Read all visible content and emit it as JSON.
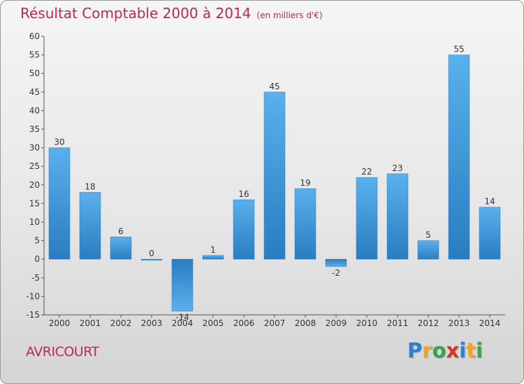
{
  "header": {
    "title": "Résultat Comptable 2000 à 2014",
    "unit": "(en milliers d'€)"
  },
  "commune": "AVRICOURT",
  "logo": {
    "text": "Proxiti",
    "letters": [
      "P",
      "r",
      "o",
      "x",
      "i",
      "t",
      "i"
    ]
  },
  "colors": {
    "title": "#c0265a",
    "bar_light": "#5ab0ec",
    "bar_dark": "#2a7dc0",
    "axis": "#555555"
  },
  "chart_data": {
    "type": "bar",
    "title": "Résultat Comptable 2000 à 2014",
    "categories": [
      "2000",
      "2001",
      "2002",
      "2003",
      "2004",
      "2005",
      "2006",
      "2007",
      "2008",
      "2009",
      "2010",
      "2011",
      "2012",
      "2013",
      "2014"
    ],
    "values": [
      30,
      18,
      6,
      0,
      -14,
      1,
      16,
      45,
      19,
      -2,
      22,
      23,
      5,
      55,
      14
    ],
    "ylim": [
      -15,
      60
    ],
    "yticks": [
      -15,
      -10,
      -5,
      0,
      5,
      10,
      15,
      20,
      25,
      30,
      35,
      40,
      45,
      50,
      55,
      60
    ],
    "grid": false,
    "data_labels": true
  }
}
